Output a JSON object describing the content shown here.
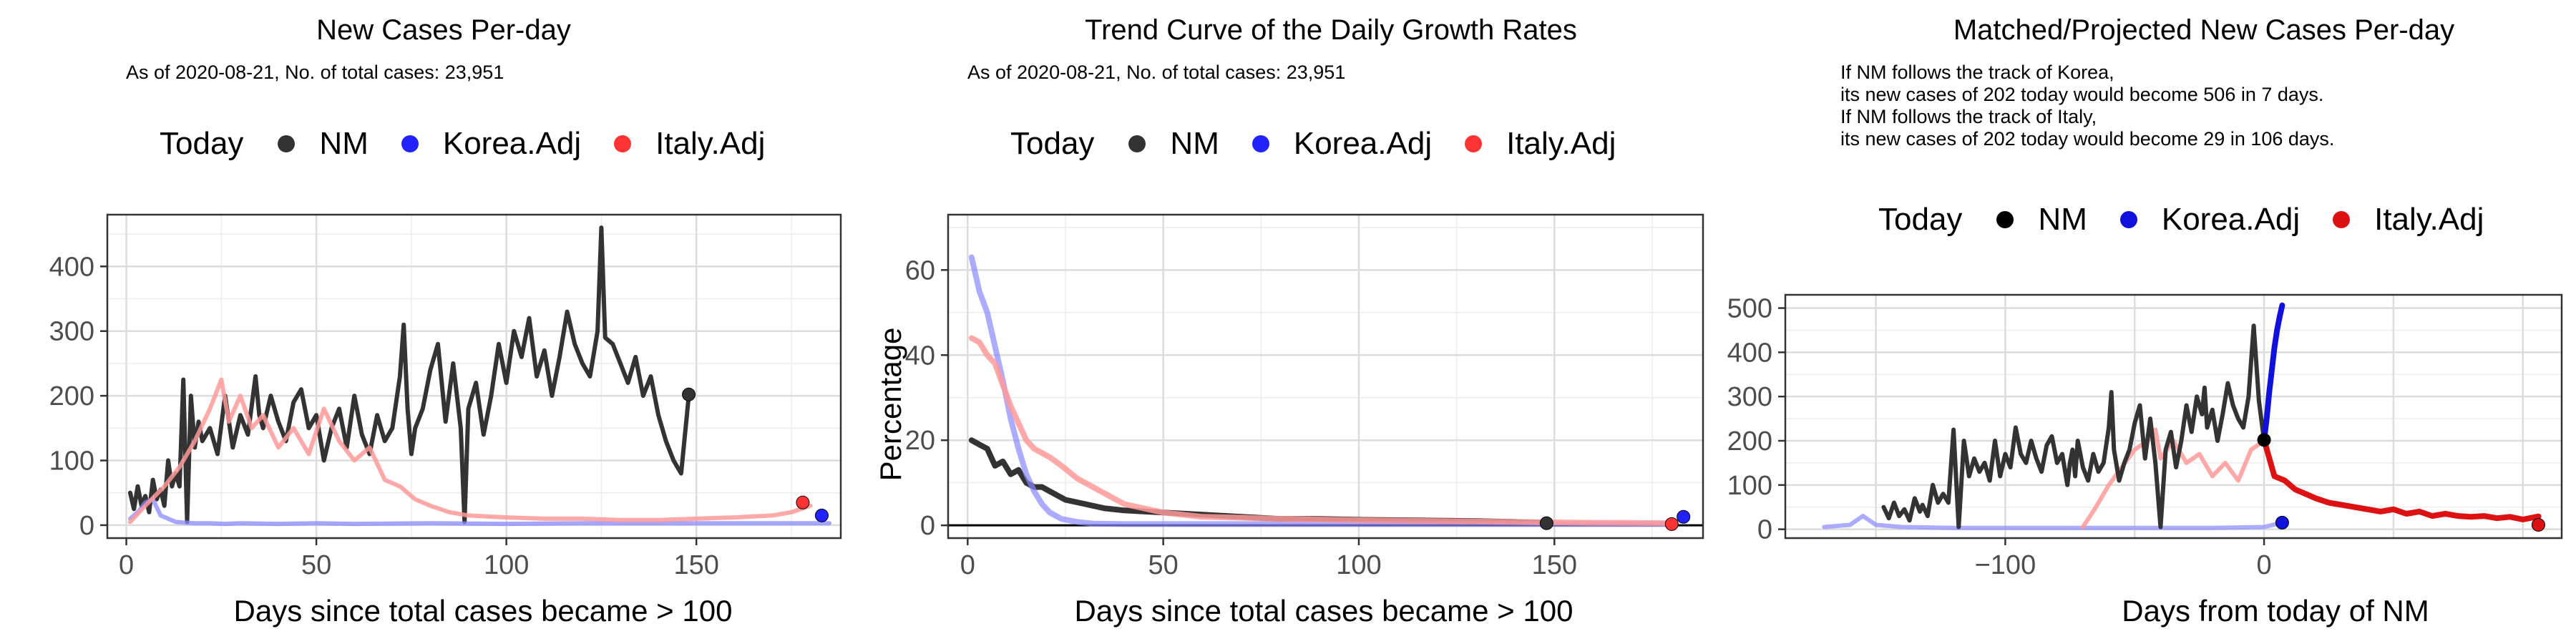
{
  "panels": [
    {
      "title": "New Cases Per-day",
      "subtitle": "As of 2020-08-21, No. of total cases: 23,951",
      "notes": [],
      "legend": {
        "title": "Today",
        "items": [
          {
            "label": "NM",
            "color": "#333333"
          },
          {
            "label": "Korea.Adj",
            "color": "#2222ff"
          },
          {
            "label": "Italy.Adj",
            "color": "#ff3333"
          }
        ]
      },
      "xlabel": "Days since total cases became > 100",
      "ylabel": ""
    },
    {
      "title": "Trend Curve of the Daily Growth Rates",
      "subtitle": "As of 2020-08-21, No. of total cases: 23,951",
      "notes": [],
      "legend": {
        "title": "Today",
        "items": [
          {
            "label": "NM",
            "color": "#333333"
          },
          {
            "label": "Korea.Adj",
            "color": "#2222ff"
          },
          {
            "label": "Italy.Adj",
            "color": "#ff3333"
          }
        ]
      },
      "xlabel": "Days since total cases became > 100",
      "ylabel": "Percentage"
    },
    {
      "title": "Matched/Projected New Cases Per-day",
      "subtitle": "",
      "notes": [
        "If NM follows the track of Korea,",
        "its new cases of 202 today would become 506 in 7 days.",
        "If NM follows the track of Italy,",
        "its new cases of 202 today would become 29 in 106 days."
      ],
      "legend": {
        "title": "Today",
        "items": [
          {
            "label": "NM",
            "color": "#000000"
          },
          {
            "label": "Korea.Adj",
            "color": "#1111dd"
          },
          {
            "label": "Italy.Adj",
            "color": "#dd1111"
          }
        ]
      },
      "xlabel": "Days from today of NM",
      "ylabel": ""
    }
  ],
  "chart_data": [
    {
      "type": "line",
      "title": "New Cases Per-day",
      "xlabel": "Days since total cases became > 100",
      "ylabel": "",
      "xlim": [
        -5,
        188
      ],
      "ylim": [
        -20,
        480
      ],
      "xticks": [
        0,
        50,
        100,
        150
      ],
      "yticks": [
        0,
        100,
        200,
        300,
        400
      ],
      "grid": true,
      "legend_position": "top",
      "series": [
        {
          "name": "NM",
          "color": "#333333",
          "width": 3,
          "opacity": 1,
          "x": [
            1,
            2,
            3,
            4,
            5,
            6,
            7,
            8,
            9,
            10,
            11,
            12,
            13,
            14,
            15,
            16,
            17,
            18,
            19,
            20,
            22,
            24,
            26,
            28,
            30,
            32,
            34,
            35,
            36,
            38,
            40,
            42,
            44,
            46,
            48,
            50,
            52,
            54,
            56,
            58,
            60,
            62,
            64,
            66,
            68,
            70,
            72,
            73,
            74,
            75,
            76,
            78,
            80,
            82,
            84,
            86,
            88,
            89,
            90,
            92,
            94,
            96,
            98,
            100,
            102,
            104,
            106,
            108,
            110,
            112,
            114,
            116,
            118,
            120,
            122,
            124,
            125,
            126,
            128,
            130,
            132,
            134,
            136,
            138,
            140,
            142,
            144,
            146,
            148
          ],
          "y": [
            50,
            25,
            60,
            30,
            45,
            20,
            70,
            40,
            55,
            30,
            100,
            60,
            80,
            60,
            225,
            5,
            200,
            120,
            160,
            130,
            150,
            110,
            200,
            120,
            170,
            140,
            230,
            170,
            150,
            200,
            160,
            130,
            190,
            210,
            150,
            170,
            100,
            150,
            180,
            120,
            200,
            140,
            110,
            170,
            130,
            150,
            230,
            310,
            180,
            110,
            150,
            180,
            240,
            280,
            160,
            250,
            150,
            5,
            180,
            220,
            140,
            200,
            280,
            220,
            300,
            260,
            320,
            230,
            270,
            200,
            260,
            330,
            280,
            250,
            230,
            300,
            460,
            290,
            280,
            250,
            220,
            260,
            200,
            230,
            170,
            130,
            100,
            80,
            200
          ]
        },
        {
          "name": "Korea.Adj",
          "color": "#8888ff",
          "width": 3,
          "opacity": 0.75,
          "x": [
            1,
            3,
            5,
            7,
            9,
            11,
            13,
            15,
            18,
            22,
            26,
            30,
            40,
            50,
            60,
            80,
            100,
            120,
            140,
            160,
            180,
            185
          ],
          "y": [
            10,
            20,
            35,
            40,
            15,
            10,
            5,
            4,
            3,
            3,
            2,
            3,
            2,
            3,
            2,
            3,
            2,
            3,
            3,
            3,
            3,
            3
          ]
        },
        {
          "name": "Italy.Adj",
          "color": "#ff9999",
          "width": 3,
          "opacity": 0.85,
          "x": [
            1,
            5,
            10,
            14,
            18,
            22,
            25,
            27,
            30,
            33,
            36,
            40,
            44,
            48,
            52,
            56,
            60,
            64,
            68,
            72,
            76,
            80,
            85,
            90,
            100,
            110,
            120,
            130,
            140,
            150,
            160,
            170,
            175,
            180
          ],
          "y": [
            5,
            30,
            60,
            90,
            130,
            180,
            225,
            160,
            200,
            150,
            170,
            120,
            150,
            110,
            180,
            130,
            100,
            120,
            70,
            60,
            40,
            30,
            20,
            15,
            12,
            10,
            10,
            8,
            8,
            10,
            12,
            15,
            20,
            30
          ]
        }
      ],
      "today_points": [
        {
          "name": "NM",
          "x": 148,
          "y": 202,
          "color": "#333333"
        },
        {
          "name": "Korea.Adj",
          "x": 183,
          "y": 15,
          "color": "#2222ff"
        },
        {
          "name": "Italy.Adj",
          "x": 178,
          "y": 35,
          "color": "#ff3333"
        }
      ]
    },
    {
      "type": "line",
      "title": "Trend Curve of the Daily Growth Rates",
      "xlabel": "Days since total cases became > 100",
      "ylabel": "Percentage",
      "xlim": [
        -5,
        188
      ],
      "ylim": [
        -3,
        73
      ],
      "xticks": [
        0,
        50,
        100,
        150
      ],
      "yticks": [
        0,
        20,
        40,
        60
      ],
      "grid": true,
      "hline": 0,
      "legend_position": "top",
      "series": [
        {
          "name": "NM",
          "color": "#333333",
          "width": 4,
          "opacity": 1,
          "x": [
            1,
            3,
            5,
            7,
            9,
            11,
            13,
            15,
            17,
            19,
            21,
            25,
            30,
            35,
            40,
            50,
            60,
            70,
            80,
            90,
            100,
            110,
            120,
            130,
            140,
            148
          ],
          "y": [
            20,
            19,
            18,
            14,
            15,
            12,
            13,
            10,
            9,
            9,
            8,
            6,
            5,
            4,
            3.5,
            3,
            2.5,
            2,
            1.5,
            1.5,
            1.3,
            1.2,
            1.1,
            1,
            0.8,
            0.5
          ]
        },
        {
          "name": "Korea.Adj",
          "color": "#8888ff",
          "width": 4,
          "opacity": 0.7,
          "x": [
            1,
            3,
            5,
            7,
            9,
            11,
            13,
            15,
            17,
            19,
            21,
            24,
            28,
            32,
            40,
            60,
            100,
            140,
            180
          ],
          "y": [
            63,
            55,
            50,
            42,
            34,
            25,
            18,
            12,
            8,
            5,
            3,
            1.5,
            0.8,
            0.4,
            0.3,
            0.3,
            0.3,
            0.3,
            0.3
          ]
        },
        {
          "name": "Italy.Adj",
          "color": "#ff9999",
          "width": 4,
          "opacity": 0.85,
          "x": [
            1,
            3,
            5,
            7,
            9,
            11,
            13,
            15,
            17,
            19,
            21,
            24,
            28,
            32,
            36,
            40,
            45,
            50,
            60,
            70,
            80,
            100,
            120,
            140,
            160,
            180
          ],
          "y": [
            44,
            43,
            40,
            38,
            33,
            28,
            24,
            20,
            18,
            17,
            16,
            14,
            11,
            9,
            7,
            5,
            4,
            3,
            2,
            1.8,
            1.5,
            1.2,
            1,
            0.8,
            0.6,
            0.5
          ]
        }
      ],
      "today_points": [
        {
          "name": "NM",
          "x": 148,
          "y": 0.5,
          "color": "#333333"
        },
        {
          "name": "Korea.Adj",
          "x": 183,
          "y": 2,
          "color": "#2222ff"
        },
        {
          "name": "Italy.Adj",
          "x": 180,
          "y": 0.3,
          "color": "#ff3333"
        }
      ]
    },
    {
      "type": "line",
      "title": "Matched/Projected New Cases Per-day",
      "xlabel": "Days from today of NM",
      "ylabel": "",
      "xlim": [
        -185,
        115
      ],
      "ylim": [
        -20,
        530
      ],
      "xticks": [
        -100,
        0
      ],
      "extra_gridlines_x": [
        -150,
        -50,
        50,
        100
      ],
      "yticks": [
        0,
        100,
        200,
        300,
        400,
        500
      ],
      "grid": true,
      "legend_position": "top",
      "series": [
        {
          "name": "Korea.Adj (matched)",
          "color": "#8888ff",
          "width": 3,
          "opacity": 0.7,
          "x": [
            -170,
            -160,
            -155,
            -150,
            -140,
            -120,
            -100,
            -80,
            -60,
            -40,
            -20,
            0,
            7
          ],
          "y": [
            5,
            10,
            30,
            10,
            5,
            3,
            3,
            3,
            3,
            3,
            3,
            5,
            15
          ]
        },
        {
          "name": "Italy.Adj (matched)",
          "color": "#ff9999",
          "width": 3,
          "opacity": 0.85,
          "x": [
            -70,
            -65,
            -60,
            -55,
            -50,
            -45,
            -42,
            -40,
            -35,
            -30,
            -25,
            -20,
            -15,
            -10,
            -5,
            0
          ],
          "y": [
            5,
            50,
            100,
            140,
            180,
            200,
            225,
            160,
            200,
            150,
            170,
            120,
            150,
            110,
            180,
            200
          ]
        },
        {
          "name": "NM",
          "color": "#333333",
          "width": 3,
          "opacity": 1,
          "x": [
            -147,
            -145,
            -143,
            -141,
            -139,
            -137,
            -135,
            -133,
            -132,
            -130,
            -128,
            -126,
            -124,
            -122,
            -120,
            -118,
            -116,
            -114,
            -112,
            -110,
            -108,
            -106,
            -104,
            -102,
            -100,
            -98,
            -96,
            -94,
            -92,
            -90,
            -88,
            -86,
            -84,
            -82,
            -80,
            -78,
            -76,
            -75,
            -74,
            -73,
            -72,
            -70,
            -68,
            -66,
            -64,
            -62,
            -60,
            -59,
            -58,
            -56,
            -54,
            -52,
            -50,
            -48,
            -46,
            -44,
            -42,
            -40,
            -38,
            -36,
            -34,
            -32,
            -30,
            -28,
            -26,
            -24,
            -23,
            -22,
            -20,
            -18,
            -16,
            -14,
            -12,
            -10,
            -8,
            -6,
            -4,
            -2,
            0
          ],
          "y": [
            50,
            25,
            60,
            30,
            45,
            20,
            70,
            40,
            55,
            30,
            100,
            60,
            80,
            60,
            225,
            5,
            200,
            120,
            160,
            130,
            150,
            110,
            200,
            120,
            170,
            140,
            230,
            170,
            150,
            200,
            160,
            130,
            190,
            210,
            150,
            170,
            100,
            150,
            180,
            120,
            200,
            140,
            110,
            170,
            130,
            150,
            230,
            310,
            180,
            110,
            150,
            180,
            240,
            280,
            160,
            250,
            150,
            5,
            180,
            220,
            140,
            200,
            280,
            220,
            300,
            260,
            320,
            230,
            270,
            200,
            260,
            330,
            280,
            250,
            230,
            300,
            460,
            290,
            200
          ]
        },
        {
          "name": "Korea.Adj (projected)",
          "color": "#1111dd",
          "width": 4,
          "opacity": 1,
          "x": [
            0,
            1,
            2,
            3,
            4,
            5,
            6,
            7
          ],
          "y": [
            202,
            250,
            310,
            360,
            410,
            450,
            480,
            506
          ]
        },
        {
          "name": "Italy.Adj (projected)",
          "color": "#dd1111",
          "width": 4,
          "opacity": 1,
          "x": [
            0,
            4,
            8,
            12,
            16,
            20,
            25,
            30,
            35,
            40,
            45,
            50,
            55,
            60,
            65,
            70,
            75,
            80,
            85,
            90,
            95,
            100,
            106
          ],
          "y": [
            202,
            120,
            110,
            90,
            80,
            70,
            60,
            55,
            50,
            45,
            40,
            45,
            35,
            40,
            30,
            35,
            30,
            28,
            30,
            25,
            28,
            22,
            29
          ]
        }
      ],
      "today_points": [
        {
          "name": "NM",
          "x": 0,
          "y": 202,
          "color": "#000000"
        },
        {
          "name": "Korea.Adj",
          "x": 7,
          "y": 15,
          "color": "#1111dd"
        },
        {
          "name": "Italy.Adj",
          "x": 106,
          "y": 10,
          "color": "#dd1111"
        }
      ]
    }
  ]
}
